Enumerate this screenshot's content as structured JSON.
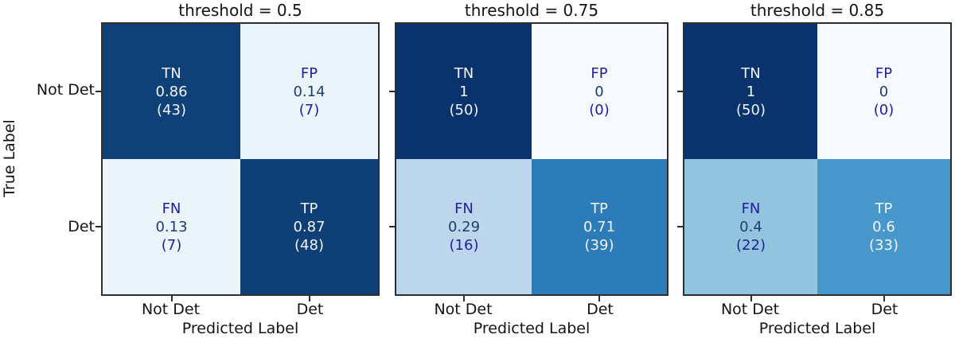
{
  "figure": {
    "ylabel": "True Label",
    "xlabel": "Predicted Label",
    "ytick_labels": [
      "Not Det",
      "Det"
    ],
    "xtick_labels": [
      "Not Det",
      "Det"
    ]
  },
  "colors": {
    "background": "#ffffff",
    "axis_spine": "#2e2e2e",
    "text": "#141414",
    "text_on_dark_cell": "#f2f3f5",
    "cell_label_navy": "#1f1f99",
    "cell_value_steel": "#1d3f6d",
    "colormap": "Blues"
  },
  "panels": [
    {
      "title": "threshold = 0.5",
      "cells": [
        {
          "name": "TN",
          "value": "0.86",
          "count": "(43)",
          "bg": "#104078"
        },
        {
          "name": "FP",
          "value": "0.14",
          "count": "(7)",
          "bg": "#ebf3fb"
        },
        {
          "name": "FN",
          "value": "0.13",
          "count": "(7)",
          "bg": "#ebf3fb"
        },
        {
          "name": "TP",
          "value": "0.87",
          "count": "(48)",
          "bg": "#0f3f77"
        }
      ]
    },
    {
      "title": "threshold = 0.75",
      "cells": [
        {
          "name": "TN",
          "value": "1",
          "count": "(50)",
          "bg": "#0a336e"
        },
        {
          "name": "FP",
          "value": "0",
          "count": "(0)",
          "bg": "#f6fafe"
        },
        {
          "name": "FN",
          "value": "0.29",
          "count": "(16)",
          "bg": "#bcd7eb"
        },
        {
          "name": "TP",
          "value": "0.71",
          "count": "(39)",
          "bg": "#2c7cba"
        }
      ]
    },
    {
      "title": "threshold = 0.85",
      "cells": [
        {
          "name": "TN",
          "value": "1",
          "count": "(50)",
          "bg": "#0a336e"
        },
        {
          "name": "FP",
          "value": "0",
          "count": "(0)",
          "bg": "#f6fafe"
        },
        {
          "name": "FN",
          "value": "0.4",
          "count": "(22)",
          "bg": "#92c4de"
        },
        {
          "name": "TP",
          "value": "0.6",
          "count": "(33)",
          "bg": "#4897ca"
        }
      ]
    }
  ],
  "chart_data": [
    {
      "type": "heatmap",
      "title": "threshold = 0.5",
      "xlabel": "Predicted Label",
      "ylabel": "True Label",
      "x_ticklabels": [
        "Not Det",
        "Det"
      ],
      "y_ticklabels": [
        "Not Det",
        "Det"
      ],
      "colormap": "Blues",
      "value_range": [
        0,
        1
      ],
      "normalized_matrix": [
        [
          0.86,
          0.14
        ],
        [
          0.13,
          0.87
        ]
      ],
      "count_matrix": [
        [
          43,
          7
        ],
        [
          7,
          48
        ]
      ],
      "cell_labels": [
        [
          "TN",
          "FP"
        ],
        [
          "FN",
          "TP"
        ]
      ]
    },
    {
      "type": "heatmap",
      "title": "threshold = 0.75",
      "xlabel": "Predicted Label",
      "ylabel": "True Label",
      "x_ticklabels": [
        "Not Det",
        "Det"
      ],
      "y_ticklabels": [
        "Not Det",
        "Det"
      ],
      "colormap": "Blues",
      "value_range": [
        0,
        1
      ],
      "normalized_matrix": [
        [
          1,
          0
        ],
        [
          0.29,
          0.71
        ]
      ],
      "count_matrix": [
        [
          50,
          0
        ],
        [
          16,
          39
        ]
      ],
      "cell_labels": [
        [
          "TN",
          "FP"
        ],
        [
          "FN",
          "TP"
        ]
      ]
    },
    {
      "type": "heatmap",
      "title": "threshold = 0.85",
      "xlabel": "Predicted Label",
      "ylabel": "True Label",
      "x_ticklabels": [
        "Not Det",
        "Det"
      ],
      "y_ticklabels": [
        "Not Det",
        "Det"
      ],
      "colormap": "Blues",
      "value_range": [
        0,
        1
      ],
      "normalized_matrix": [
        [
          1,
          0
        ],
        [
          0.4,
          0.6
        ]
      ],
      "count_matrix": [
        [
          50,
          0
        ],
        [
          22,
          33
        ]
      ],
      "cell_labels": [
        [
          "TN",
          "FP"
        ],
        [
          "FN",
          "TP"
        ]
      ]
    }
  ]
}
